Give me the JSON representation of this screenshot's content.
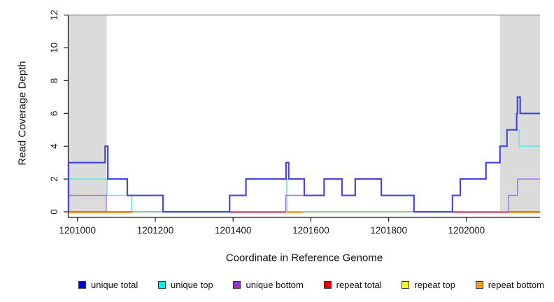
{
  "chart_data": {
    "type": "line",
    "subtype": "step",
    "title": "",
    "xlabel": "Coordinate in Reference Genome",
    "ylabel": "Read Coverage Depth",
    "xlim": [
      1200977,
      1202189
    ],
    "ylim": [
      0,
      12
    ],
    "x_ticks": [
      1201000,
      1201200,
      1201400,
      1201600,
      1201800,
      1202000
    ],
    "y_ticks": [
      0,
      2,
      4,
      6,
      8,
      10,
      12
    ],
    "grid": false,
    "top_rule_value": 12,
    "top_rule_color": "#9a9a9a",
    "shade_color": "#dbdbdb",
    "axis_color": "#111111",
    "shaded_regions": [
      {
        "from": 1200977,
        "to": 1201075
      },
      {
        "from": 1202086,
        "to": 1202189
      }
    ],
    "top_series": "unique total",
    "series": [
      {
        "name": "repeat top",
        "color": "#f2e14c",
        "width": 1.4,
        "steps": [
          [
            1200977,
            0
          ]
        ]
      },
      {
        "name": "repeat bottom",
        "color": "#ff8c00",
        "width": 1.4,
        "steps": [
          [
            1200977,
            0
          ]
        ]
      },
      {
        "name": "repeat total",
        "color": "#d4556a",
        "width": 1.4,
        "steps": [
          [
            1200977,
            0
          ]
        ]
      },
      {
        "name": "unique top",
        "color": "#63e3e8",
        "width": 1.5,
        "steps": [
          [
            1200977,
            2
          ],
          [
            1201076,
            1
          ],
          [
            1201139,
            0
          ],
          [
            1201391,
            1
          ],
          [
            1201433,
            2
          ],
          [
            1201538,
            0
          ],
          [
            1201964,
            1
          ],
          [
            1201984,
            2
          ],
          [
            1202050,
            3
          ],
          [
            1202086,
            4
          ],
          [
            1202104,
            5
          ],
          [
            1202135,
            4
          ]
        ]
      },
      {
        "name": "unique bottom",
        "color": "#a379e0",
        "width": 1.5,
        "steps": [
          [
            1200977,
            1
          ],
          [
            1201074,
            0
          ],
          [
            1201535,
            1
          ],
          [
            1201634,
            2
          ],
          [
            1201680,
            1
          ],
          [
            1201714,
            2
          ],
          [
            1201781,
            1
          ],
          [
            1201865,
            0
          ],
          [
            1202108,
            1
          ],
          [
            1202131,
            2
          ]
        ]
      },
      {
        "name": "unique total",
        "color": "#4646de",
        "width": 2.2,
        "steps": [
          [
            1200977,
            3
          ],
          [
            1201071,
            4
          ],
          [
            1201078,
            2
          ],
          [
            1201128,
            1
          ],
          [
            1201220,
            0
          ],
          [
            1201391,
            1
          ],
          [
            1201433,
            2
          ],
          [
            1201536,
            3
          ],
          [
            1201543,
            2
          ],
          [
            1201583,
            1
          ],
          [
            1201634,
            2
          ],
          [
            1201680,
            1
          ],
          [
            1201714,
            2
          ],
          [
            1201781,
            1
          ],
          [
            1201865,
            0
          ],
          [
            1201964,
            1
          ],
          [
            1201984,
            2
          ],
          [
            1202050,
            3
          ],
          [
            1202086,
            4
          ],
          [
            1202104,
            5
          ],
          [
            1202129,
            6
          ],
          [
            1202131,
            7
          ],
          [
            1202138,
            6
          ]
        ]
      }
    ],
    "zero_overlay": [
      {
        "color": "#ff8c00",
        "from": 1200977,
        "to": 1201139,
        "dy": 1
      },
      {
        "color": "#8fcd92",
        "from": 1201143,
        "to": 1201220,
        "dy": 0
      },
      {
        "color": "#d4556a",
        "from": 1201391,
        "to": 1201536,
        "dy": 1
      },
      {
        "color": "#ff8c00",
        "from": 1201538,
        "to": 1201580,
        "dy": 1
      },
      {
        "color": "#8fcd92",
        "from": 1201583,
        "to": 1201862,
        "dy": 0
      },
      {
        "color": "#d4556a",
        "from": 1201964,
        "to": 1202108,
        "dy": 1
      },
      {
        "color": "#ff8c00",
        "from": 1202108,
        "to": 1202189,
        "dy": 1
      }
    ],
    "legend": [
      {
        "label": "unique total",
        "swatch": "#0000e5"
      },
      {
        "label": "unique top",
        "swatch": "#00eeee"
      },
      {
        "label": "unique bottom",
        "swatch": "#9932cc"
      },
      {
        "label": "repeat total",
        "swatch": "#e60000"
      },
      {
        "label": "repeat top",
        "swatch": "#ffff00"
      },
      {
        "label": "repeat bottom",
        "swatch": "#ff9912"
      }
    ]
  }
}
